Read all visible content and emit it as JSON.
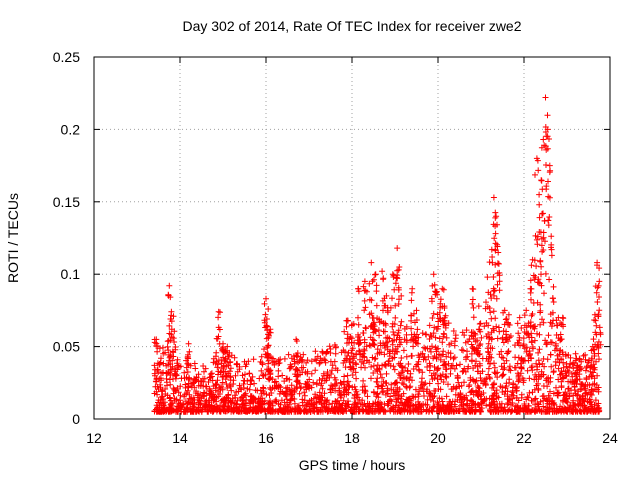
{
  "chart_data": {
    "type": "scatter",
    "title": "Day 302 of 2014, Rate Of TEC Index for receiver zwe2",
    "xlabel": "GPS time / hours",
    "ylabel": "ROTI / TECUs",
    "xlim": [
      12,
      24
    ],
    "ylim": [
      0,
      0.25
    ],
    "xticks": [
      12,
      14,
      16,
      18,
      20,
      22,
      24
    ],
    "ytick_labels": [
      "0",
      "0.05",
      "0.1",
      "0.15",
      "0.2",
      "0.25"
    ],
    "yticks": [
      0,
      0.05,
      0.1,
      0.15,
      0.2,
      0.25
    ],
    "grid": true,
    "marker": "+",
    "color": "#ff0000",
    "series": [
      {
        "name": "ROTI",
        "envelope": {
          "x": [
            13.4,
            13.6,
            13.8,
            14.0,
            14.2,
            14.4,
            14.6,
            14.8,
            15.0,
            15.2,
            15.4,
            15.6,
            15.8,
            16.0,
            16.2,
            16.4,
            16.6,
            16.8,
            17.0,
            17.2,
            17.4,
            17.6,
            17.8,
            18.0,
            18.2,
            18.4,
            18.6,
            18.8,
            19.0,
            19.2,
            19.4,
            19.6,
            19.8,
            20.0,
            20.2,
            20.4,
            20.6,
            20.8,
            21.0,
            21.2,
            21.4,
            21.6,
            21.8,
            22.0,
            22.2,
            22.4,
            22.6,
            22.8,
            23.0,
            23.2,
            23.4,
            23.6,
            23.75
          ],
          "y": [
            0.055,
            0.05,
            0.045,
            0.04,
            0.045,
            0.04,
            0.04,
            0.045,
            0.05,
            0.045,
            0.04,
            0.04,
            0.045,
            0.05,
            0.045,
            0.04,
            0.05,
            0.045,
            0.045,
            0.05,
            0.05,
            0.055,
            0.06,
            0.065,
            0.07,
            0.075,
            0.07,
            0.065,
            0.07,
            0.07,
            0.065,
            0.06,
            0.065,
            0.075,
            0.07,
            0.06,
            0.06,
            0.065,
            0.065,
            0.075,
            0.07,
            0.06,
            0.055,
            0.06,
            0.065,
            0.07,
            0.06,
            0.05,
            0.045,
            0.04,
            0.045,
            0.045,
            0.06
          ]
        },
        "peaks": [
          {
            "x": 13.45,
            "y": 0.055
          },
          {
            "x": 13.75,
            "y": 0.092
          },
          {
            "x": 13.8,
            "y": 0.074
          },
          {
            "x": 13.85,
            "y": 0.071
          },
          {
            "x": 14.2,
            "y": 0.052
          },
          {
            "x": 14.9,
            "y": 0.074
          },
          {
            "x": 15.0,
            "y": 0.052
          },
          {
            "x": 15.1,
            "y": 0.05
          },
          {
            "x": 16.0,
            "y": 0.083
          },
          {
            "x": 16.05,
            "y": 0.076
          },
          {
            "x": 16.1,
            "y": 0.062
          },
          {
            "x": 16.7,
            "y": 0.055
          },
          {
            "x": 17.9,
            "y": 0.068
          },
          {
            "x": 18.0,
            "y": 0.065
          },
          {
            "x": 18.15,
            "y": 0.09
          },
          {
            "x": 18.3,
            "y": 0.095
          },
          {
            "x": 18.45,
            "y": 0.108
          },
          {
            "x": 18.55,
            "y": 0.1
          },
          {
            "x": 18.7,
            "y": 0.102
          },
          {
            "x": 18.8,
            "y": 0.085
          },
          {
            "x": 18.95,
            "y": 0.1
          },
          {
            "x": 19.05,
            "y": 0.118
          },
          {
            "x": 19.1,
            "y": 0.105
          },
          {
            "x": 19.4,
            "y": 0.09
          },
          {
            "x": 19.5,
            "y": 0.075
          },
          {
            "x": 19.9,
            "y": 0.1
          },
          {
            "x": 19.95,
            "y": 0.088
          },
          {
            "x": 20.1,
            "y": 0.09
          },
          {
            "x": 20.15,
            "y": 0.078
          },
          {
            "x": 20.8,
            "y": 0.09
          },
          {
            "x": 20.95,
            "y": 0.078
          },
          {
            "x": 21.15,
            "y": 0.098
          },
          {
            "x": 21.25,
            "y": 0.117
          },
          {
            "x": 21.3,
            "y": 0.153
          },
          {
            "x": 21.35,
            "y": 0.14
          },
          {
            "x": 21.4,
            "y": 0.115
          },
          {
            "x": 21.55,
            "y": 0.075
          },
          {
            "x": 21.65,
            "y": 0.072
          },
          {
            "x": 21.9,
            "y": 0.07
          },
          {
            "x": 22.05,
            "y": 0.075
          },
          {
            "x": 22.15,
            "y": 0.09
          },
          {
            "x": 22.2,
            "y": 0.11
          },
          {
            "x": 22.3,
            "y": 0.18
          },
          {
            "x": 22.35,
            "y": 0.155
          },
          {
            "x": 22.4,
            "y": 0.165
          },
          {
            "x": 22.45,
            "y": 0.193
          },
          {
            "x": 22.5,
            "y": 0.222
          },
          {
            "x": 22.55,
            "y": 0.2
          },
          {
            "x": 22.6,
            "y": 0.175
          },
          {
            "x": 22.65,
            "y": 0.113
          },
          {
            "x": 22.8,
            "y": 0.07
          },
          {
            "x": 22.9,
            "y": 0.07
          },
          {
            "x": 23.2,
            "y": 0.045
          },
          {
            "x": 23.6,
            "y": 0.05
          },
          {
            "x": 23.65,
            "y": 0.072
          },
          {
            "x": 23.7,
            "y": 0.108
          },
          {
            "x": 23.75,
            "y": 0.095
          }
        ]
      }
    ]
  }
}
